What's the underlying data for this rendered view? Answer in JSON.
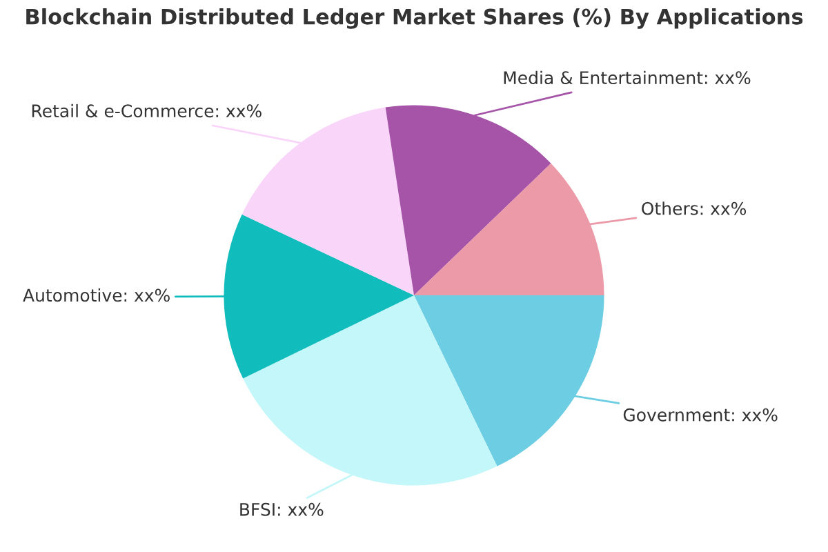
{
  "chart_data": {
    "type": "pie",
    "title": "Blockchain Distributed Ledger Market Shares (%) By Applications",
    "categories": [
      "Government",
      "BFSI",
      "Automotive",
      "Retail & e-Commerce",
      "Media & Entertainment",
      "Others"
    ],
    "values": [
      17.8,
      25,
      14.2,
      15.6,
      15.2,
      12.2
    ],
    "value_labels": [
      "xx%",
      "xx%",
      "xx%",
      "xx%",
      "xx%",
      "xx%"
    ],
    "colors": [
      "#6dcde3",
      "#c4f7f9",
      "#10bcbc",
      "#f9d5f9",
      "#a554a8",
      "#ec9aa8"
    ],
    "legend": false
  }
}
